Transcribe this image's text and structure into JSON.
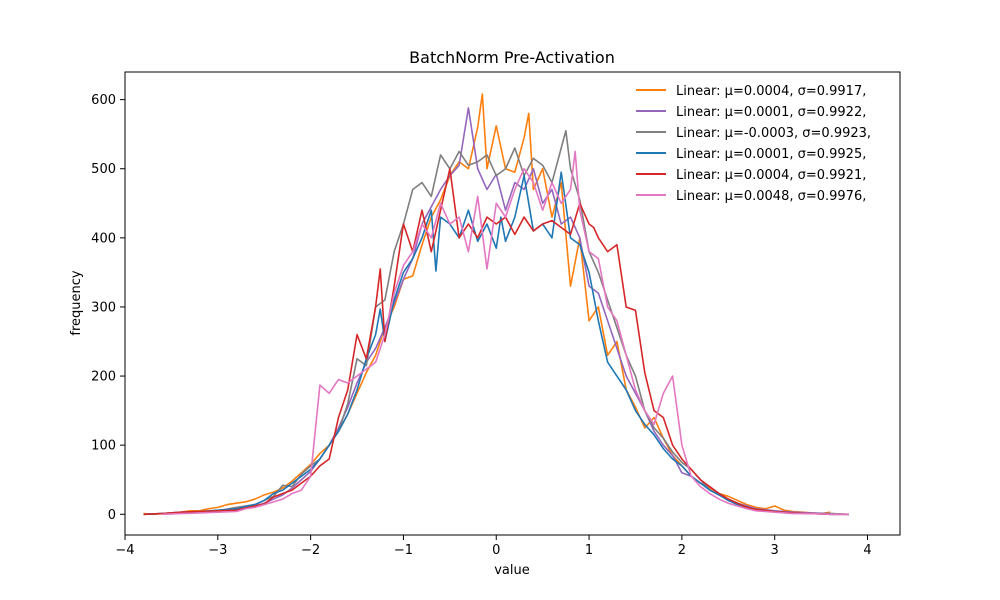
{
  "chart_data": {
    "type": "line",
    "title": "BatchNorm Pre-Activation",
    "xlabel": "value",
    "ylabel": "frequency",
    "xlim": [
      -4.0,
      4.35
    ],
    "ylim": [
      -30,
      640
    ],
    "xticks": [
      -4,
      -3,
      -2,
      -1,
      0,
      1,
      2,
      3,
      4
    ],
    "yticks": [
      0,
      100,
      200,
      300,
      400,
      500,
      600
    ],
    "grid": false,
    "legend_position": "top-right",
    "series": [
      {
        "name": "Linear: μ=0.0004, σ=0.9917,",
        "color": "#ff7f0e",
        "x": [
          -3.8,
          -3.7,
          -3.6,
          -3.5,
          -3.4,
          -3.3,
          -3.2,
          -3.1,
          -3.0,
          -2.9,
          -2.8,
          -2.7,
          -2.6,
          -2.5,
          -2.4,
          -2.3,
          -2.2,
          -2.1,
          -2.0,
          -1.9,
          -1.8,
          -1.7,
          -1.6,
          -1.5,
          -1.4,
          -1.3,
          -1.2,
          -1.1,
          -1.0,
          -0.9,
          -0.8,
          -0.7,
          -0.6,
          -0.5,
          -0.4,
          -0.3,
          -0.2,
          -0.15,
          -0.1,
          0.0,
          0.1,
          0.2,
          0.3,
          0.35,
          0.4,
          0.5,
          0.6,
          0.7,
          0.8,
          0.9,
          1.0,
          1.1,
          1.2,
          1.3,
          1.4,
          1.5,
          1.6,
          1.7,
          1.8,
          1.9,
          2.0,
          2.1,
          2.2,
          2.3,
          2.4,
          2.5,
          2.6,
          2.7,
          2.8,
          2.9,
          3.0,
          3.1,
          3.2,
          3.3,
          3.4,
          3.5,
          3.6
        ],
        "y": [
          1,
          0,
          1,
          2,
          3,
          5,
          5,
          8,
          10,
          14,
          16,
          18,
          22,
          28,
          32,
          38,
          48,
          60,
          72,
          88,
          100,
          120,
          145,
          175,
          205,
          230,
          270,
          300,
          340,
          345,
          390,
          430,
          455,
          490,
          510,
          500,
          560,
          608,
          500,
          562,
          500,
          495,
          545,
          580,
          470,
          500,
          430,
          480,
          330,
          400,
          280,
          300,
          230,
          250,
          180,
          155,
          125,
          140,
          110,
          85,
          70,
          55,
          45,
          38,
          30,
          26,
          20,
          14,
          10,
          8,
          12,
          6,
          4,
          3,
          2,
          1,
          3
        ]
      },
      {
        "name": "Linear: μ=0.0001, σ=0.9922,",
        "color": "#9467bd",
        "x": [
          -3.8,
          -3.6,
          -3.4,
          -3.2,
          -3.0,
          -2.8,
          -2.6,
          -2.5,
          -2.4,
          -2.3,
          -2.2,
          -2.1,
          -2.0,
          -1.9,
          -1.8,
          -1.7,
          -1.6,
          -1.5,
          -1.4,
          -1.3,
          -1.2,
          -1.1,
          -1.0,
          -0.9,
          -0.8,
          -0.7,
          -0.6,
          -0.5,
          -0.4,
          -0.3,
          -0.2,
          -0.1,
          0.0,
          0.1,
          0.2,
          0.3,
          0.4,
          0.5,
          0.6,
          0.7,
          0.8,
          0.9,
          1.0,
          1.1,
          1.2,
          1.3,
          1.4,
          1.5,
          1.6,
          1.7,
          1.8,
          1.9,
          2.0,
          2.1,
          2.2,
          2.3,
          2.4,
          2.5,
          2.6,
          2.7,
          2.8,
          3.0,
          3.2,
          3.4,
          3.6,
          3.8
        ],
        "y": [
          0,
          1,
          2,
          3,
          5,
          8,
          12,
          16,
          22,
          28,
          38,
          50,
          62,
          80,
          100,
          125,
          155,
          190,
          220,
          240,
          270,
          305,
          340,
          370,
          420,
          445,
          470,
          490,
          505,
          588,
          500,
          470,
          492,
          440,
          480,
          470,
          500,
          450,
          470,
          420,
          430,
          400,
          330,
          320,
          280,
          240,
          200,
          175,
          150,
          120,
          100,
          85,
          60,
          55,
          45,
          40,
          30,
          20,
          16,
          12,
          8,
          5,
          3,
          2,
          1,
          0
        ]
      },
      {
        "name": "Linear: μ=-0.0003, σ=0.9923,",
        "color": "#7f7f7f",
        "x": [
          -3.8,
          -3.6,
          -3.4,
          -3.2,
          -3.0,
          -2.8,
          -2.6,
          -2.5,
          -2.4,
          -2.3,
          -2.2,
          -2.1,
          -2.0,
          -1.9,
          -1.8,
          -1.7,
          -1.6,
          -1.5,
          -1.4,
          -1.3,
          -1.2,
          -1.1,
          -1.0,
          -0.9,
          -0.8,
          -0.7,
          -0.6,
          -0.5,
          -0.4,
          -0.3,
          -0.2,
          -0.1,
          0.0,
          0.1,
          0.2,
          0.3,
          0.4,
          0.5,
          0.6,
          0.7,
          0.75,
          0.8,
          0.9,
          1.0,
          1.1,
          1.2,
          1.3,
          1.4,
          1.5,
          1.6,
          1.7,
          1.8,
          1.9,
          2.0,
          2.1,
          2.2,
          2.3,
          2.4,
          2.5,
          2.6,
          2.7,
          2.8,
          3.0,
          3.2,
          3.4,
          3.6,
          3.8
        ],
        "y": [
          0,
          1,
          2,
          3,
          5,
          10,
          14,
          20,
          26,
          42,
          40,
          58,
          70,
          80,
          100,
          120,
          160,
          225,
          215,
          300,
          310,
          380,
          420,
          470,
          480,
          460,
          520,
          500,
          525,
          505,
          510,
          520,
          490,
          500,
          530,
          490,
          515,
          505,
          480,
          530,
          555,
          500,
          455,
          380,
          350,
          310,
          270,
          230,
          200,
          150,
          125,
          110,
          90,
          75,
          65,
          50,
          35,
          28,
          22,
          16,
          10,
          7,
          4,
          2,
          1,
          1,
          0
        ]
      },
      {
        "name": "Linear: μ=0.0001, σ=0.9925,",
        "color": "#1f77b4",
        "x": [
          -3.8,
          -3.6,
          -3.4,
          -3.2,
          -3.0,
          -2.8,
          -2.6,
          -2.5,
          -2.4,
          -2.3,
          -2.2,
          -2.1,
          -2.0,
          -1.9,
          -1.8,
          -1.7,
          -1.6,
          -1.5,
          -1.4,
          -1.3,
          -1.25,
          -1.2,
          -1.1,
          -1.0,
          -0.9,
          -0.8,
          -0.7,
          -0.65,
          -0.6,
          -0.5,
          -0.4,
          -0.3,
          -0.2,
          -0.1,
          0.0,
          0.05,
          0.1,
          0.2,
          0.3,
          0.4,
          0.5,
          0.6,
          0.7,
          0.8,
          0.9,
          1.0,
          1.1,
          1.2,
          1.3,
          1.4,
          1.5,
          1.6,
          1.7,
          1.8,
          1.9,
          2.0,
          2.1,
          2.2,
          2.3,
          2.4,
          2.5,
          2.6,
          2.7,
          2.8,
          3.0,
          3.2,
          3.4,
          3.6,
          3.8
        ],
        "y": [
          0,
          1,
          3,
          4,
          6,
          8,
          14,
          20,
          30,
          35,
          45,
          55,
          65,
          80,
          100,
          120,
          145,
          180,
          225,
          260,
          297,
          250,
          310,
          350,
          370,
          400,
          440,
          352,
          430,
          420,
          400,
          440,
          395,
          420,
          385,
          430,
          395,
          430,
          490,
          410,
          420,
          400,
          495,
          400,
          390,
          350,
          280,
          220,
          200,
          180,
          150,
          130,
          115,
          95,
          80,
          70,
          55,
          45,
          35,
          28,
          20,
          14,
          10,
          7,
          4,
          2,
          1,
          0,
          0
        ]
      },
      {
        "name": "Linear: μ=0.0004, σ=0.9921,",
        "color": "#d62728",
        "x": [
          -3.8,
          -3.6,
          -3.4,
          -3.2,
          -3.0,
          -2.8,
          -2.6,
          -2.5,
          -2.4,
          -2.3,
          -2.2,
          -2.1,
          -2.0,
          -1.9,
          -1.8,
          -1.7,
          -1.6,
          -1.5,
          -1.4,
          -1.3,
          -1.25,
          -1.2,
          -1.1,
          -1.0,
          -0.9,
          -0.8,
          -0.7,
          -0.6,
          -0.5,
          -0.4,
          -0.3,
          -0.2,
          -0.1,
          0.0,
          0.1,
          0.2,
          0.3,
          0.4,
          0.5,
          0.6,
          0.7,
          0.8,
          0.9,
          1.0,
          1.05,
          1.1,
          1.2,
          1.3,
          1.4,
          1.5,
          1.6,
          1.7,
          1.8,
          1.9,
          2.0,
          2.1,
          2.2,
          2.3,
          2.4,
          2.5,
          2.6,
          2.7,
          2.8,
          3.0,
          3.2,
          3.4,
          3.6,
          3.8
        ],
        "y": [
          0,
          1,
          3,
          4,
          5,
          6,
          12,
          15,
          25,
          30,
          35,
          45,
          55,
          70,
          80,
          140,
          180,
          260,
          225,
          300,
          355,
          250,
          330,
          420,
          380,
          440,
          380,
          440,
          500,
          400,
          420,
          400,
          430,
          420,
          430,
          405,
          430,
          410,
          420,
          425,
          415,
          405,
          450,
          420,
          415,
          400,
          380,
          390,
          300,
          295,
          205,
          150,
          140,
          100,
          80,
          65,
          50,
          40,
          30,
          22,
          16,
          10,
          7,
          4,
          2,
          1,
          0,
          0
        ]
      },
      {
        "name": "Linear: μ=0.0048, σ=0.9976,",
        "color": "#e377c2",
        "x": [
          -3.6,
          -3.4,
          -3.2,
          -3.0,
          -2.8,
          -2.7,
          -2.6,
          -2.5,
          -2.4,
          -2.3,
          -2.2,
          -2.1,
          -2.0,
          -1.9,
          -1.8,
          -1.7,
          -1.6,
          -1.5,
          -1.4,
          -1.3,
          -1.2,
          -1.1,
          -1.0,
          -0.9,
          -0.8,
          -0.7,
          -0.6,
          -0.5,
          -0.4,
          -0.3,
          -0.2,
          -0.1,
          0.0,
          0.1,
          0.2,
          0.3,
          0.4,
          0.5,
          0.6,
          0.7,
          0.8,
          0.85,
          0.9,
          1.0,
          1.1,
          1.2,
          1.3,
          1.4,
          1.5,
          1.6,
          1.7,
          1.8,
          1.9,
          2.0,
          2.1,
          2.2,
          2.3,
          2.4,
          2.5,
          2.6,
          2.7,
          2.8,
          3.0,
          3.2,
          3.4,
          3.6,
          3.8
        ],
        "y": [
          0,
          1,
          2,
          3,
          4,
          8,
          10,
          14,
          18,
          22,
          30,
          35,
          55,
          187,
          175,
          195,
          190,
          200,
          210,
          220,
          260,
          320,
          360,
          380,
          420,
          400,
          450,
          420,
          430,
          380,
          460,
          355,
          450,
          430,
          470,
          500,
          480,
          440,
          480,
          450,
          470,
          525,
          440,
          380,
          370,
          300,
          280,
          230,
          180,
          150,
          130,
          175,
          200,
          100,
          55,
          40,
          30,
          22,
          16,
          12,
          8,
          5,
          3,
          1,
          1,
          0,
          0
        ]
      }
    ]
  }
}
